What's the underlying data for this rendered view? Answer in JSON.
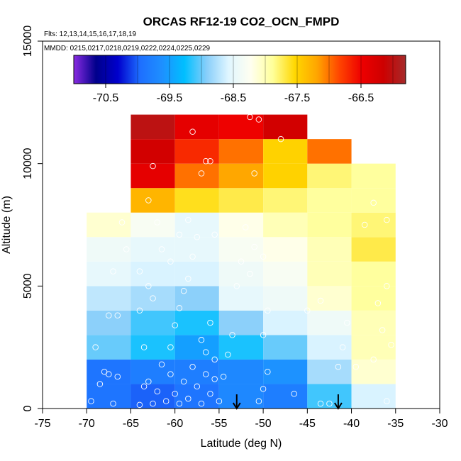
{
  "chart_data": {
    "type": "heatmap",
    "title": "ORCAS RF12-19 CO2_OCN_FMPD",
    "flights_label": "Flts: 12,13,14,15,16,17,18,19",
    "dates_label": "MMDD: 0215,0217,0218,0219,0222,0224,0225,0229",
    "xlabel": "Latitude (deg N)",
    "ylabel": "Altitude (m)",
    "xlim": [
      -75,
      -30
    ],
    "ylim": [
      0,
      15000
    ],
    "x_ticks": [
      "-75",
      "-70",
      "-65",
      "-60",
      "-55",
      "-50",
      "-45",
      "-40",
      "-35",
      "-30"
    ],
    "x_tick_values": [
      -75,
      -70,
      -65,
      -60,
      -55,
      -50,
      -45,
      -40,
      -35,
      -30
    ],
    "y_ticks": [
      "0",
      "5000",
      "10000",
      "15000"
    ],
    "y_tick_values": [
      0,
      5000,
      10000,
      15000
    ],
    "colorbar": {
      "range": [
        -71.0,
        -65.8
      ],
      "tick_labels": [
        "-70.5",
        "-69.5",
        "-68.5",
        "-67.5",
        "-66.5"
      ],
      "tick_values": [
        -70.5,
        -69.5,
        -68.5,
        -67.5,
        -66.5
      ],
      "stops": [
        "#8a2be2",
        "#00008b",
        "#0000cd",
        "#1e6fff",
        "#1e90ff",
        "#00bfff",
        "#87cefa",
        "#e0f6ff",
        "#fffff0",
        "#ffff99",
        "#ffd700",
        "#ffa500",
        "#ff4500",
        "#ee0000",
        "#cd0000",
        "#a52a2a"
      ]
    },
    "bin_width_deg": 5,
    "bin_height_m": 1000,
    "cells": [
      {
        "lat": -70,
        "alt": 0,
        "value": -69.9
      },
      {
        "lat": -70,
        "alt": 1000,
        "value": -69.9
      },
      {
        "lat": -70,
        "alt": 2000,
        "value": -69.0
      },
      {
        "lat": -70,
        "alt": 3000,
        "value": -68.9
      },
      {
        "lat": -70,
        "alt": 4000,
        "value": -68.7
      },
      {
        "lat": -70,
        "alt": 5000,
        "value": -68.5
      },
      {
        "lat": -70,
        "alt": 6000,
        "value": -68.4
      },
      {
        "lat": -70,
        "alt": 7000,
        "value": -68.1
      },
      {
        "lat": -65,
        "alt": 0,
        "value": -70.0
      },
      {
        "lat": -65,
        "alt": 1000,
        "value": -69.8
      },
      {
        "lat": -65,
        "alt": 2000,
        "value": -69.2
      },
      {
        "lat": -65,
        "alt": 3000,
        "value": -69.1
      },
      {
        "lat": -65,
        "alt": 4000,
        "value": -68.8
      },
      {
        "lat": -65,
        "alt": 5000,
        "value": -68.6
      },
      {
        "lat": -65,
        "alt": 6000,
        "value": -68.5
      },
      {
        "lat": -65,
        "alt": 7000,
        "value": -68.3
      },
      {
        "lat": -65,
        "alt": 8000,
        "value": -67.3
      },
      {
        "lat": -65,
        "alt": 9000,
        "value": -66.4
      },
      {
        "lat": -65,
        "alt": 10000,
        "value": -66.2
      },
      {
        "lat": -65,
        "alt": 11000,
        "value": -66.0
      },
      {
        "lat": -60,
        "alt": 0,
        "value": -69.9
      },
      {
        "lat": -60,
        "alt": 1000,
        "value": -69.8
      },
      {
        "lat": -60,
        "alt": 2000,
        "value": -69.5
      },
      {
        "lat": -60,
        "alt": 3000,
        "value": -69.2
      },
      {
        "lat": -60,
        "alt": 4000,
        "value": -68.9
      },
      {
        "lat": -60,
        "alt": 5000,
        "value": -68.6
      },
      {
        "lat": -60,
        "alt": 6000,
        "value": -68.5
      },
      {
        "lat": -60,
        "alt": 7000,
        "value": -68.5
      },
      {
        "lat": -60,
        "alt": 8000,
        "value": -67.6
      },
      {
        "lat": -60,
        "alt": 9000,
        "value": -67.0
      },
      {
        "lat": -60,
        "alt": 10000,
        "value": -66.7
      },
      {
        "lat": -60,
        "alt": 11000,
        "value": -66.4
      },
      {
        "lat": -55,
        "alt": 0,
        "value": -69.7
      },
      {
        "lat": -55,
        "alt": 1000,
        "value": -69.7
      },
      {
        "lat": -55,
        "alt": 2000,
        "value": -69.2
      },
      {
        "lat": -55,
        "alt": 3000,
        "value": -68.9
      },
      {
        "lat": -55,
        "alt": 4000,
        "value": -68.5
      },
      {
        "lat": -55,
        "alt": 5000,
        "value": -68.4
      },
      {
        "lat": -55,
        "alt": 6000,
        "value": -68.3
      },
      {
        "lat": -55,
        "alt": 7000,
        "value": -68.2
      },
      {
        "lat": -55,
        "alt": 8000,
        "value": -67.7
      },
      {
        "lat": -55,
        "alt": 9000,
        "value": -67.2
      },
      {
        "lat": -55,
        "alt": 10000,
        "value": -67.0
      },
      {
        "lat": -55,
        "alt": 11000,
        "value": -66.5
      },
      {
        "lat": -50,
        "alt": 0,
        "value": -69.8
      },
      {
        "lat": -50,
        "alt": 1000,
        "value": -69.6
      },
      {
        "lat": -50,
        "alt": 2000,
        "value": -69.0
      },
      {
        "lat": -50,
        "alt": 3000,
        "value": -68.6
      },
      {
        "lat": -50,
        "alt": 4000,
        "value": -68.4
      },
      {
        "lat": -50,
        "alt": 5000,
        "value": -68.3
      },
      {
        "lat": -50,
        "alt": 6000,
        "value": -68.2
      },
      {
        "lat": -50,
        "alt": 7000,
        "value": -68.0
      },
      {
        "lat": -50,
        "alt": 8000,
        "value": -67.8
      },
      {
        "lat": -50,
        "alt": 9000,
        "value": -67.5
      },
      {
        "lat": -50,
        "alt": 10000,
        "value": -67.5
      },
      {
        "lat": -50,
        "alt": 11000,
        "value": -66.2
      },
      {
        "lat": -45,
        "alt": 0,
        "value": -69.1
      },
      {
        "lat": -45,
        "alt": 1000,
        "value": -68.8
      },
      {
        "lat": -45,
        "alt": 2000,
        "value": -68.6
      },
      {
        "lat": -45,
        "alt": 3000,
        "value": -68.4
      },
      {
        "lat": -45,
        "alt": 4000,
        "value": -68.1
      },
      {
        "lat": -45,
        "alt": 5000,
        "value": -68.0
      },
      {
        "lat": -45,
        "alt": 6000,
        "value": -68.0
      },
      {
        "lat": -45,
        "alt": 7000,
        "value": -67.9
      },
      {
        "lat": -45,
        "alt": 8000,
        "value": -67.9
      },
      {
        "lat": -45,
        "alt": 9000,
        "value": -67.8
      },
      {
        "lat": -45,
        "alt": 10000,
        "value": -67.0
      },
      {
        "lat": -40,
        "alt": 0,
        "value": -68.6
      },
      {
        "lat": -40,
        "alt": 1000,
        "value": -68.1
      },
      {
        "lat": -40,
        "alt": 2000,
        "value": -68.0
      },
      {
        "lat": -40,
        "alt": 3000,
        "value": -68.0
      },
      {
        "lat": -40,
        "alt": 4000,
        "value": -67.9
      },
      {
        "lat": -40,
        "alt": 5000,
        "value": -67.9
      },
      {
        "lat": -40,
        "alt": 6000,
        "value": -67.7
      },
      {
        "lat": -40,
        "alt": 7000,
        "value": -67.8
      },
      {
        "lat": -40,
        "alt": 8000,
        "value": -67.9
      },
      {
        "lat": -40,
        "alt": 9000,
        "value": -67.9
      }
    ],
    "observation_points": [
      [
        -69.5,
        300
      ],
      [
        -68.5,
        1000
      ],
      [
        -68.0,
        1500
      ],
      [
        -67.5,
        1400
      ],
      [
        -67.0,
        200
      ],
      [
        -66.5,
        1300
      ],
      [
        -69.0,
        2500
      ],
      [
        -67.5,
        3800
      ],
      [
        -66.5,
        3800
      ],
      [
        -67.0,
        5600
      ],
      [
        -65.5,
        6500
      ],
      [
        -66.0,
        7600
      ],
      [
        -64.0,
        150
      ],
      [
        -63.5,
        900
      ],
      [
        -63.0,
        1100
      ],
      [
        -62.5,
        200
      ],
      [
        -62.0,
        700
      ],
      [
        -61.5,
        1800
      ],
      [
        -63.5,
        2500
      ],
      [
        -64.0,
        4000
      ],
      [
        -62.5,
        4500
      ],
      [
        -63.0,
        5000
      ],
      [
        -61.5,
        6500
      ],
      [
        -62.0,
        7600
      ],
      [
        -63.0,
        8500
      ],
      [
        -62.5,
        9900
      ],
      [
        -64.0,
        5600
      ],
      [
        -61.0,
        300
      ],
      [
        -60.5,
        1400
      ],
      [
        -60.0,
        600
      ],
      [
        -59.5,
        200
      ],
      [
        -59.0,
        1100
      ],
      [
        -58.5,
        400
      ],
      [
        -58.0,
        1700
      ],
      [
        -57.5,
        900
      ],
      [
        -57.0,
        200
      ],
      [
        -56.5,
        1400
      ],
      [
        -56.0,
        600
      ],
      [
        -55.5,
        1200
      ],
      [
        -55.0,
        300
      ],
      [
        -60.5,
        2500
      ],
      [
        -60.0,
        3400
      ],
      [
        -59.5,
        4100
      ],
      [
        -59.0,
        4800
      ],
      [
        -58.5,
        5300
      ],
      [
        -58.0,
        6200
      ],
      [
        -57.5,
        7000
      ],
      [
        -57.0,
        2800
      ],
      [
        -56.5,
        2300
      ],
      [
        -56.0,
        3500
      ],
      [
        -60.5,
        6000
      ],
      [
        -59.5,
        7100
      ],
      [
        -58.5,
        7700
      ],
      [
        -57.0,
        9600
      ],
      [
        -56.5,
        10100
      ],
      [
        -56.0,
        10100
      ],
      [
        -55.5,
        7100
      ],
      [
        -58.0,
        11300
      ],
      [
        -55.5,
        2000
      ],
      [
        -54.5,
        1300
      ],
      [
        -54.0,
        2200
      ],
      [
        -53.5,
        3000
      ],
      [
        -53.0,
        5000
      ],
      [
        -52.5,
        6000
      ],
      [
        -52.0,
        7400
      ],
      [
        -51.0,
        6600
      ],
      [
        -50.5,
        300
      ],
      [
        -50.0,
        800
      ],
      [
        -49.5,
        1500
      ],
      [
        -50.0,
        3000
      ],
      [
        -49.5,
        4000
      ],
      [
        -51.5,
        5500
      ],
      [
        -50.0,
        6200
      ],
      [
        -51.0,
        9600
      ],
      [
        -51.5,
        11900
      ],
      [
        -50.5,
        11800
      ],
      [
        -48.0,
        11000
      ],
      [
        -46.5,
        600
      ],
      [
        -45.0,
        4000
      ],
      [
        -43.5,
        4400
      ],
      [
        -43.5,
        200
      ],
      [
        -42.5,
        200
      ],
      [
        -41.5,
        1700
      ],
      [
        -41.0,
        2500
      ],
      [
        -40.5,
        3500
      ],
      [
        -39.5,
        1700
      ],
      [
        -37.5,
        2000
      ],
      [
        -37.0,
        4300
      ],
      [
        -36.5,
        3200
      ],
      [
        -36.0,
        300
      ],
      [
        -35.5,
        2600
      ],
      [
        -38.5,
        7500
      ],
      [
        -36.0,
        5000
      ],
      [
        -37.5,
        8400
      ],
      [
        -36.0,
        7700
      ]
    ],
    "arrows_lat": [
      -53,
      -41.5
    ]
  }
}
